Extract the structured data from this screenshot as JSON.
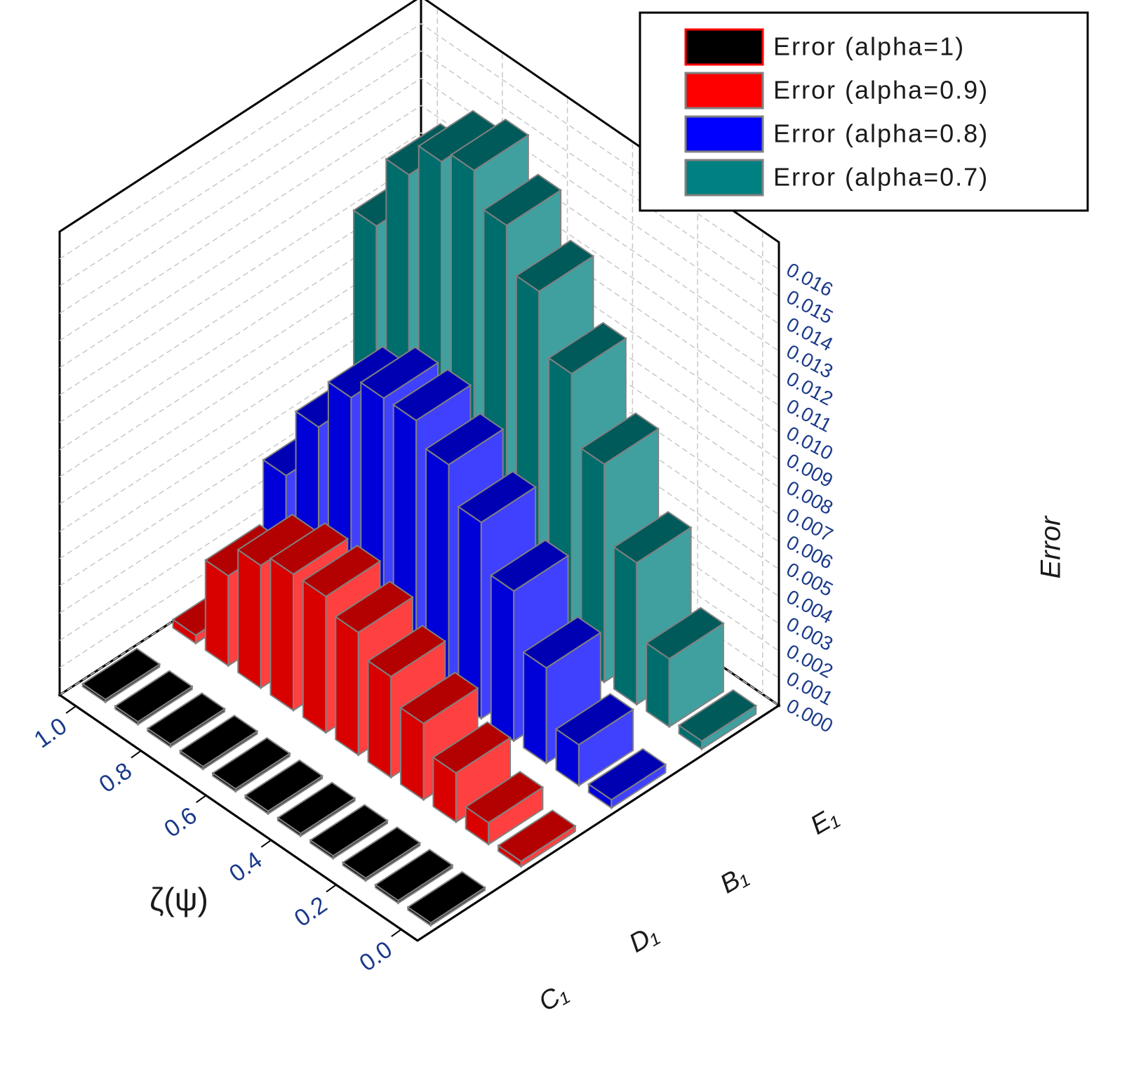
{
  "chart_data": {
    "type": "bar3d",
    "x_label": "ζ(ψ)",
    "y_label": "Error",
    "x": [
      0,
      0.1,
      0.2,
      0.3,
      0.4,
      0.5,
      0.6,
      0.7,
      0.8,
      0.9,
      1.0
    ],
    "xlim": [
      -0.05,
      1.05
    ],
    "xticks": [
      {
        "value": 0,
        "label": "0.0"
      },
      {
        "value": 0.2,
        "label": "0.2"
      },
      {
        "value": 0.4,
        "label": "0.4"
      },
      {
        "value": 0.6,
        "label": "0.6"
      },
      {
        "value": 0.8,
        "label": "0.8"
      },
      {
        "value": 1.0,
        "label": "1.0"
      }
    ],
    "ylim": [
      0,
      0.017
    ],
    "yticks": [
      {
        "value": 0,
        "label": "0.000"
      },
      {
        "value": 0.001,
        "label": "0.001"
      },
      {
        "value": 0.002,
        "label": "0.002"
      },
      {
        "value": 0.003,
        "label": "0.003"
      },
      {
        "value": 0.004,
        "label": "0.004"
      },
      {
        "value": 0.005,
        "label": "0.005"
      },
      {
        "value": 0.006,
        "label": "0.006"
      },
      {
        "value": 0.007,
        "label": "0.007"
      },
      {
        "value": 0.008,
        "label": "0.008"
      },
      {
        "value": 0.009,
        "label": "0.009"
      },
      {
        "value": 0.01,
        "label": "0.010"
      },
      {
        "value": 0.011,
        "label": "0.011"
      },
      {
        "value": 0.012,
        "label": "0.012"
      },
      {
        "value": 0.013,
        "label": "0.013"
      },
      {
        "value": 0.014,
        "label": "0.014"
      },
      {
        "value": 0.015,
        "label": "0.015"
      },
      {
        "value": 0.016,
        "label": "0.016"
      }
    ],
    "grid": true,
    "legend": "upper right",
    "series": [
      {
        "name": "Error (alpha=1)",
        "label": "C₁",
        "color": "#000000",
        "values": [
          0.0001,
          0.0001,
          0.0001,
          0.0001,
          0.0001,
          0.0001,
          0.0001,
          0.0001,
          0.0001,
          0.0001,
          0.0001
        ]
      },
      {
        "name": "Error (alpha=0.9)",
        "label": "D₁",
        "color": "#ff0000",
        "values": [
          0.0002,
          0.0008,
          0.0018,
          0.0028,
          0.0037,
          0.0045,
          0.005,
          0.005,
          0.0045,
          0.0033,
          0.0003
        ]
      },
      {
        "name": "Error (alpha=0.8)",
        "label": "B₁",
        "color": "#0000ff",
        "values": [
          0.0003,
          0.0015,
          0.0035,
          0.0055,
          0.0072,
          0.0085,
          0.0093,
          0.0093,
          0.0085,
          0.0066,
          0.004
        ]
      },
      {
        "name": "Error (alpha=0.7)",
        "label": "E₁",
        "color": "#008080",
        "values": [
          0.0003,
          0.0025,
          0.0052,
          0.008,
          0.0105,
          0.0127,
          0.0143,
          0.0155,
          0.015,
          0.0137,
          0.011
        ]
      }
    ]
  }
}
